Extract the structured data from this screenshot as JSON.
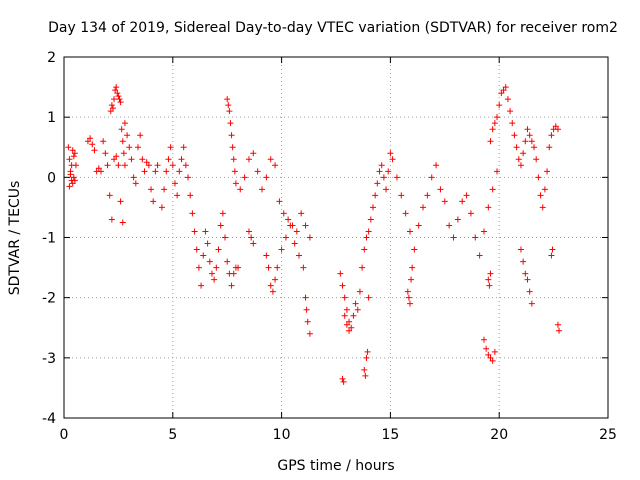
{
  "chart_data": {
    "type": "scatter",
    "title": "Day 134 of 2019, Sidereal Day-to-day VTEC variation (SDTVAR) for receiver rom2",
    "xlabel": "GPS time / hours",
    "ylabel": "SDTVAR / TECUs",
    "xlim": [
      0,
      25
    ],
    "ylim": [
      -4,
      2
    ],
    "xticks": [
      0,
      5,
      10,
      15,
      20,
      25
    ],
    "yticks": [
      -4,
      -3,
      -2,
      -1,
      0,
      1,
      2
    ],
    "grid": true,
    "marker": "+",
    "color": "#ff0000",
    "series": [
      {
        "name": "rom2",
        "x": [
          0.2,
          0.25,
          0.3,
          0.35,
          0.4,
          0.45,
          0.5,
          0.55,
          0.25,
          0.3,
          0.35,
          0.4,
          0.45,
          0.5,
          1.1,
          1.2,
          1.3,
          1.4,
          1.6,
          1.7,
          1.8,
          1.9,
          2.0,
          2.1,
          2.2,
          2.3,
          2.4,
          2.5,
          2.6,
          2.7,
          2.8,
          2.9,
          3.0,
          3.1,
          3.2,
          3.3,
          3.4,
          3.5,
          3.6,
          3.7,
          3.8,
          3.9,
          4.0,
          4.1,
          4.2,
          4.3,
          1.5,
          2.15,
          2.2,
          2.25,
          2.3,
          2.35,
          2.4,
          2.45,
          2.5,
          2.55,
          2.6,
          2.65,
          2.7,
          2.75,
          2.8,
          4.5,
          4.6,
          4.7,
          4.8,
          4.9,
          5.0,
          5.1,
          5.2,
          5.3,
          5.4,
          5.5,
          5.6,
          5.7,
          5.8,
          5.9,
          6.0,
          6.1,
          6.2,
          6.3,
          6.4,
          6.5,
          6.6,
          6.7,
          6.8,
          6.9,
          7.0,
          7.1,
          7.2,
          7.3,
          7.4,
          7.5,
          7.6,
          7.7,
          7.8,
          7.9,
          8.0,
          7.5,
          7.55,
          7.6,
          7.65,
          7.7,
          7.75,
          7.8,
          7.85,
          7.9,
          8.1,
          8.3,
          8.5,
          8.7,
          8.9,
          9.1,
          9.3,
          9.5,
          9.7,
          9.9,
          10.1,
          10.3,
          10.5,
          10.7,
          10.9,
          11.1,
          11.3,
          8.5,
          8.6,
          8.7,
          9.3,
          9.4,
          9.5,
          9.6,
          9.7,
          9.8,
          10.0,
          10.2,
          10.4,
          10.6,
          10.8,
          11.0,
          11.1,
          11.15,
          11.2,
          11.3,
          12.7,
          12.8,
          12.9,
          13.0,
          13.1,
          13.2,
          13.3,
          13.4,
          13.5,
          13.6,
          13.7,
          13.8,
          13.9,
          14.0,
          14.1,
          14.2,
          14.3,
          14.4,
          14.5,
          14.6,
          14.7,
          14.8,
          14.9,
          15.0,
          12.8,
          12.85,
          12.9,
          13.0,
          13.1,
          13.8,
          13.85,
          13.9,
          13.95,
          14.0,
          15.1,
          15.3,
          15.5,
          15.7,
          15.9,
          16.1,
          16.3,
          16.5,
          16.7,
          16.9,
          17.1,
          17.3,
          17.5,
          17.7,
          17.9,
          18.1,
          18.3,
          18.5,
          18.7,
          18.9,
          19.1,
          19.3,
          19.5,
          19.7,
          19.9,
          15.8,
          15.85,
          15.9,
          15.95,
          16.0,
          19.3,
          19.4,
          19.5,
          19.6,
          19.7,
          19.8,
          19.5,
          19.55,
          19.6,
          19.6,
          19.7,
          19.8,
          19.9,
          20.0,
          20.1,
          20.2,
          20.3,
          20.4,
          20.5,
          20.6,
          20.7,
          20.8,
          20.9,
          21.0,
          21.1,
          21.2,
          21.3,
          21.4,
          21.5,
          21.6,
          21.7,
          21.8,
          21.9,
          22.0,
          22.1,
          22.2,
          22.3,
          22.4,
          22.5,
          22.6,
          22.7,
          21.0,
          21.1,
          21.2,
          21.3,
          21.4,
          21.5,
          22.4,
          22.45,
          22.7,
          22.75
        ],
        "y": [
          0.5,
          0.3,
          0.1,
          -0.05,
          -0.1,
          0.0,
          0.4,
          0.2,
          -0.15,
          0.05,
          0.2,
          0.45,
          0.35,
          -0.05,
          0.6,
          0.65,
          0.55,
          0.45,
          0.15,
          0.1,
          0.6,
          0.4,
          0.2,
          -0.3,
          -0.7,
          0.3,
          0.35,
          0.2,
          -0.4,
          -0.75,
          0.9,
          0.7,
          0.5,
          0.3,
          0.0,
          -0.1,
          0.5,
          0.7,
          0.3,
          0.1,
          0.25,
          0.2,
          -0.2,
          -0.4,
          0.1,
          0.2,
          0.1,
          1.1,
          1.2,
          1.15,
          1.3,
          1.45,
          1.5,
          1.4,
          1.35,
          1.3,
          1.25,
          0.8,
          0.6,
          0.4,
          0.2,
          -0.5,
          -0.2,
          0.1,
          0.3,
          0.5,
          0.2,
          -0.1,
          -0.3,
          0.1,
          0.3,
          0.5,
          0.2,
          0.0,
          -0.3,
          -0.6,
          -0.9,
          -1.2,
          -1.5,
          -1.8,
          -1.3,
          -0.9,
          -1.1,
          -1.4,
          -1.6,
          -1.7,
          -1.5,
          -1.2,
          -0.8,
          -0.6,
          -1.0,
          -1.4,
          -1.6,
          -1.8,
          -1.6,
          -1.5,
          -1.5,
          1.3,
          1.2,
          1.1,
          0.9,
          0.7,
          0.5,
          0.3,
          0.1,
          -0.1,
          -0.2,
          0.0,
          0.3,
          0.4,
          0.1,
          -0.2,
          0.0,
          0.3,
          0.2,
          -0.4,
          -0.6,
          -0.7,
          -0.8,
          -0.9,
          -0.6,
          -0.8,
          -1.0,
          -0.9,
          -1.0,
          -1.1,
          -1.3,
          -1.5,
          -1.8,
          -1.9,
          -1.7,
          -1.5,
          -1.2,
          -1.0,
          -0.8,
          -1.1,
          -1.3,
          -1.5,
          -2.0,
          -2.2,
          -2.4,
          -2.6,
          -1.6,
          -1.8,
          -2.0,
          -2.2,
          -2.4,
          -2.5,
          -2.3,
          -2.1,
          -2.2,
          -1.9,
          -1.5,
          -1.2,
          -1.0,
          -0.9,
          -0.7,
          -0.5,
          -0.3,
          -0.1,
          0.1,
          0.2,
          0.0,
          -0.2,
          0.1,
          0.4,
          -3.35,
          -3.4,
          -2.3,
          -2.45,
          -2.55,
          -3.2,
          -3.3,
          -3.0,
          -2.9,
          -2.0,
          0.3,
          0.0,
          -0.3,
          -0.6,
          -0.9,
          -1.2,
          -0.8,
          -0.5,
          -0.3,
          0.0,
          0.2,
          -0.2,
          -0.4,
          -0.8,
          -1.0,
          -0.7,
          -0.4,
          -0.3,
          -0.6,
          -1.0,
          -1.3,
          -0.9,
          -0.5,
          -0.2,
          0.1,
          -1.9,
          -2.0,
          -2.1,
          -1.7,
          -1.5,
          -2.7,
          -2.85,
          -2.95,
          -3.0,
          -3.05,
          -2.9,
          -1.7,
          -1.8,
          -1.6,
          0.6,
          0.8,
          0.9,
          1.0,
          1.2,
          1.4,
          1.45,
          1.5,
          1.3,
          1.1,
          0.9,
          0.7,
          0.5,
          0.3,
          0.2,
          0.4,
          0.6,
          0.8,
          0.7,
          0.6,
          0.5,
          0.3,
          0.0,
          -0.3,
          -0.5,
          -0.2,
          0.1,
          0.5,
          0.7,
          0.8,
          0.85,
          0.8,
          -1.2,
          -1.4,
          -1.6,
          -1.7,
          -1.9,
          -2.1,
          -1.3,
          -1.2,
          -2.45,
          -2.55
        ]
      }
    ]
  }
}
